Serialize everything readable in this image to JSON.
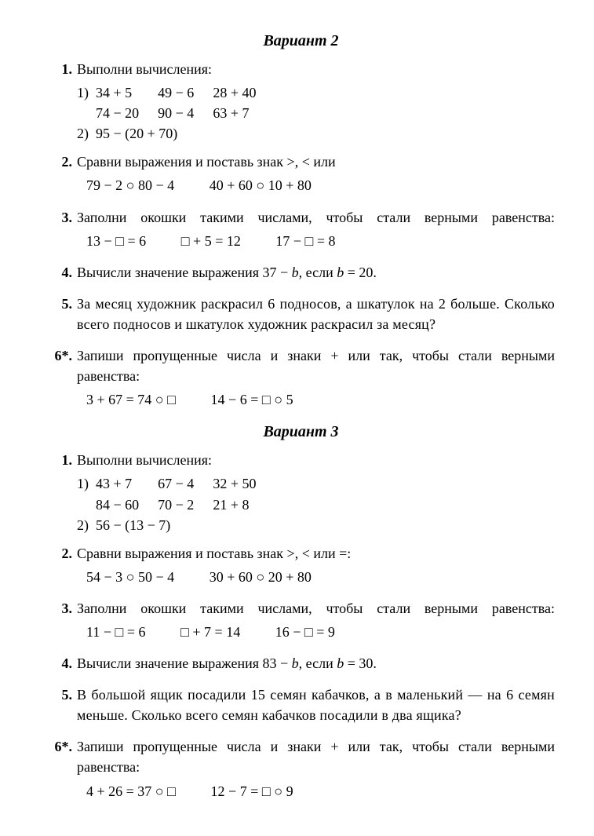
{
  "variants": [
    {
      "title": "Вариант 2",
      "problems": [
        {
          "num": "1.",
          "text": "Выполни вычисления:",
          "calc": {
            "sub1": "1)",
            "row1": [
              "34 + 5",
              "49 − 6",
              "28 + 40"
            ],
            "row2": [
              "74 − 20",
              "90 − 4",
              "63 + 7"
            ],
            "sub2": "2)",
            "row3": "95 − (20 + 70)"
          }
        },
        {
          "num": "2.",
          "text": "Сравни выражения и поставь знак >, < или",
          "exprs": [
            "79 − 2 ○ 80 − 4",
            "40 + 60 ○ 10 + 80"
          ]
        },
        {
          "num": "3.",
          "text": "Заполни окошки такими числами, чтобы стали вер­ными равенства:",
          "exprs": [
            "13 − □ = 6",
            "□ + 5 = 12",
            "17 − □ = 8"
          ]
        },
        {
          "num": "4.",
          "text_a": "Вычисли значение выражения 37 − ",
          "var": "b",
          "text_b": ", если ",
          "var2": "b",
          "text_c": " = 20."
        },
        {
          "num": "5.",
          "text": "За месяц художник раскрасил 6 подносов, а шкату­лок на 2 больше. Сколько всего подносов и шкатулок художник раскрасил за месяц?"
        },
        {
          "num": "6*.",
          "text": "Запиши пропущенные числа и знаки + или   так, чтобы стали верными равенства:",
          "exprs": [
            "3 + 67 = 74 ○ □",
            "14 − 6 = □ ○ 5"
          ]
        }
      ]
    },
    {
      "title": "Вариант 3",
      "problems": [
        {
          "num": "1.",
          "text": "Выполни вычисления:",
          "calc": {
            "sub1": "1)",
            "row1": [
              "43 + 7",
              "67 − 4",
              "32 + 50"
            ],
            "row2": [
              "84 − 60",
              "70 − 2",
              "21 + 8"
            ],
            "sub2": "2)",
            "row3": "56 − (13 − 7)"
          }
        },
        {
          "num": "2.",
          "text": "Сравни выражения и поставь знак >, < или =:",
          "exprs": [
            "54 − 3 ○ 50 − 4",
            "30 + 60 ○ 20 + 80"
          ]
        },
        {
          "num": "3.",
          "text": "Заполни окошки такими числами, чтобы стали вер­ными равенства:",
          "exprs": [
            "11 − □ = 6",
            "□ + 7 = 14",
            "16 − □ = 9"
          ]
        },
        {
          "num": "4.",
          "text_a": "Вычисли значение выражения 83 − ",
          "var": "b",
          "text_b": ", если ",
          "var2": "b",
          "text_c": " = 30."
        },
        {
          "num": "5.",
          "text": "В большой ящик посадили 15 семян кабачков, а в ма­ленький — на 6 семян меньше. Сколько всего семян кабачков посадили в два ящика?"
        },
        {
          "num": "6*.",
          "text": "Запиши пропущенные числа и знаки + или   так, чтобы стали верными равенства:",
          "exprs": [
            "4 + 26 = 37 ○ □",
            "12 − 7 = □ ○ 9"
          ]
        }
      ]
    }
  ],
  "colors": {
    "bg": "#ffffff",
    "fg": "#000000"
  },
  "fontsize": {
    "body": 18,
    "title": 20
  }
}
